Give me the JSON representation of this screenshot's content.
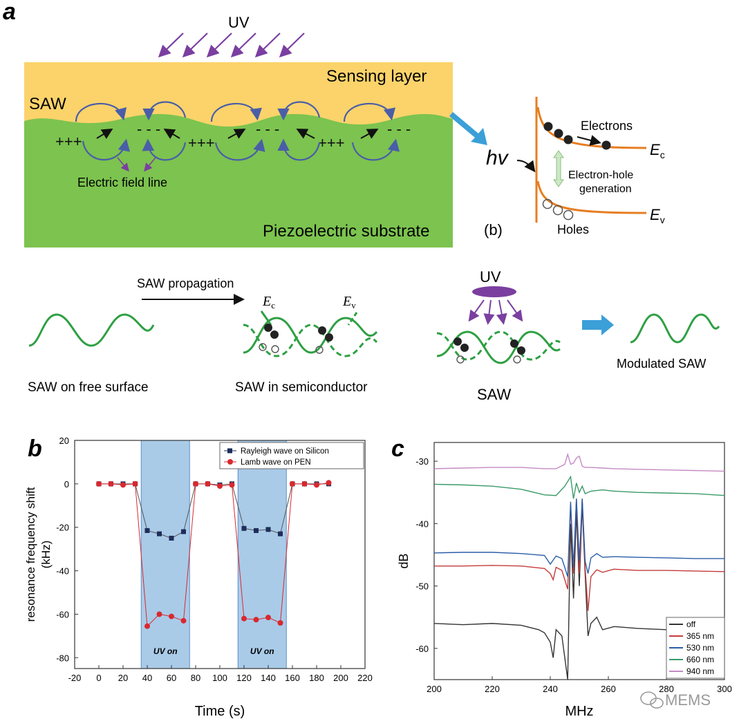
{
  "panel_a": {
    "label": "a",
    "uv": "UV",
    "sensing_layer": "Sensing layer",
    "saw": "SAW",
    "plus": "+++",
    "minus": "- - -",
    "field_line": "Electric field line",
    "substrate": "Piezoelectric substrate",
    "hv": "hv",
    "electrons": "Electrons",
    "generation_line1": "Electron-hole",
    "generation_line2": "generation",
    "holes": "Holes",
    "ec_E": "E",
    "ec_sub": "c",
    "ev_E": "E",
    "ev_sub": "v",
    "sub_b": "(b)",
    "propagation": "SAW propagation",
    "free_surface": "SAW on free surface",
    "semiconductor": "SAW in semiconductor",
    "uv2": "UV",
    "saw2": "SAW",
    "modulated": "Modulated SAW",
    "ec2_E": "E",
    "ec2_sub": "c",
    "ev2_E": "E",
    "ev2_sub": "v",
    "colors": {
      "sensing": "#fbd36a",
      "substrate": "#7cc34f",
      "wave": "#2ea043",
      "uv": "#7b3fa0",
      "band": "#e67e22",
      "arrow_blue": "#3b9fd8"
    }
  },
  "panel_b": {
    "label": "b",
    "chart_data": {
      "type": "line",
      "xlabel": "Time (s)",
      "ylabel_line1": "resonance frequency shift",
      "ylabel_line2": "(kHz)",
      "xlim": [
        -20,
        220
      ],
      "ylim": [
        -85,
        20
      ],
      "xticks": [
        -20,
        0,
        20,
        40,
        60,
        80,
        100,
        120,
        140,
        160,
        180,
        200,
        220
      ],
      "yticks": [
        20,
        0,
        -20,
        -40,
        -60,
        -80
      ],
      "shaded": [
        {
          "x0": 35,
          "x1": 75,
          "label": "UV on"
        },
        {
          "x0": 115,
          "x1": 155,
          "label": "UV on"
        }
      ],
      "series": [
        {
          "name": "Rayleigh wave on Silicon",
          "color": "#1f2d5a",
          "marker": "square",
          "x": [
            0,
            10,
            20,
            30,
            40,
            50,
            60,
            70,
            80,
            90,
            100,
            110,
            120,
            130,
            140,
            150,
            160,
            170,
            180,
            190
          ],
          "y": [
            0,
            0,
            0,
            0,
            -21.5,
            -23,
            -25,
            -22,
            0,
            0,
            -0.5,
            0,
            -20.5,
            -21.5,
            -21,
            -23,
            0,
            0,
            0,
            0
          ]
        },
        {
          "name": "Lamb wave on PEN",
          "color": "#d9282f",
          "marker": "circle",
          "x": [
            0,
            10,
            20,
            30,
            40,
            50,
            60,
            70,
            80,
            90,
            100,
            110,
            120,
            130,
            140,
            150,
            160,
            170,
            180,
            190
          ],
          "y": [
            0,
            0,
            -0.5,
            0,
            -65.5,
            -60,
            -61,
            -63,
            0,
            0,
            -1,
            -0.5,
            -62,
            -62.5,
            -61.5,
            -64,
            0,
            0,
            -0.5,
            0.5
          ]
        }
      ]
    }
  },
  "panel_c": {
    "label": "c",
    "watermark": "MEMS",
    "chart_data": {
      "type": "line",
      "xlabel": "MHz",
      "ylabel": "dB",
      "xlim": [
        200,
        300
      ],
      "ylim": [
        -65,
        -27
      ],
      "xticks": [
        200,
        220,
        240,
        260,
        280,
        300
      ],
      "yticks": [
        -30,
        -40,
        -50,
        -60
      ],
      "series": [
        {
          "name": "off",
          "color": "#333333",
          "x": [
            200,
            210,
            220,
            230,
            236,
            238,
            240,
            241,
            242,
            244,
            246,
            247,
            248,
            249,
            250,
            251,
            252,
            253,
            254,
            256,
            258,
            262,
            270,
            280,
            290,
            300
          ],
          "y": [
            -56,
            -56.2,
            -56,
            -56.3,
            -57,
            -57.5,
            -59,
            -61.5,
            -57,
            -58,
            -65,
            -40,
            -52,
            -38,
            -50,
            -37,
            -48,
            -58,
            -56,
            -55,
            -57,
            -56.5,
            -56.8,
            -57,
            -57.2,
            -57.5
          ]
        },
        {
          "name": "365 nm",
          "color": "#c43b3b",
          "x": [
            200,
            210,
            220,
            230,
            238,
            240,
            241,
            242,
            244,
            246,
            247,
            248,
            249,
            250,
            251,
            252,
            253,
            254,
            256,
            258,
            262,
            270,
            280,
            290,
            300
          ],
          "y": [
            -46.8,
            -46.8,
            -46.7,
            -46.8,
            -47.2,
            -48,
            -49,
            -47,
            -47.5,
            -50.5,
            -37,
            -48,
            -36,
            -48,
            -36,
            -47,
            -54,
            -48.5,
            -47.4,
            -47.8,
            -47.3,
            -47.5,
            -47.5,
            -47.6,
            -47.7
          ]
        },
        {
          "name": "530 nm",
          "color": "#2a5da8",
          "x": [
            200,
            210,
            220,
            230,
            238,
            240,
            242,
            244,
            246,
            247,
            248,
            249,
            250,
            251,
            252,
            253,
            254,
            256,
            258,
            262,
            270,
            280,
            290,
            300
          ],
          "y": [
            -44.7,
            -44.6,
            -44.6,
            -44.8,
            -45.1,
            -46.5,
            -45.2,
            -45.6,
            -48.5,
            -36.5,
            -47,
            -36,
            -46,
            -36,
            -46,
            -48,
            -45.5,
            -44.8,
            -45.4,
            -45.3,
            -45.4,
            -45.5,
            -45.6,
            -45.6
          ]
        },
        {
          "name": "660 nm",
          "color": "#3a9a6a",
          "x": [
            200,
            210,
            220,
            230,
            238,
            242,
            245,
            247,
            248,
            249,
            250,
            251,
            252,
            254,
            258,
            262,
            270,
            280,
            290,
            300
          ],
          "y": [
            -33.7,
            -33.8,
            -34,
            -34.5,
            -35.4,
            -35.5,
            -34,
            -32.5,
            -36,
            -33.5,
            -35,
            -34,
            -35.2,
            -34.8,
            -34.6,
            -34.8,
            -35,
            -35.1,
            -35.2,
            -35.5
          ]
        },
        {
          "name": "940 nm",
          "color": "#c58ac3",
          "x": [
            200,
            210,
            220,
            230,
            238,
            242,
            245,
            246,
            247,
            248,
            249,
            250,
            251,
            252,
            254,
            258,
            262,
            270,
            280,
            290,
            300
          ],
          "y": [
            -31.2,
            -31.1,
            -31,
            -31,
            -31.2,
            -31.2,
            -30.5,
            -28.9,
            -30.5,
            -30.3,
            -29.5,
            -29.2,
            -30.8,
            -31,
            -31,
            -31.1,
            -31.2,
            -31.3,
            -31.4,
            -31.5,
            -31.6
          ]
        }
      ]
    }
  }
}
